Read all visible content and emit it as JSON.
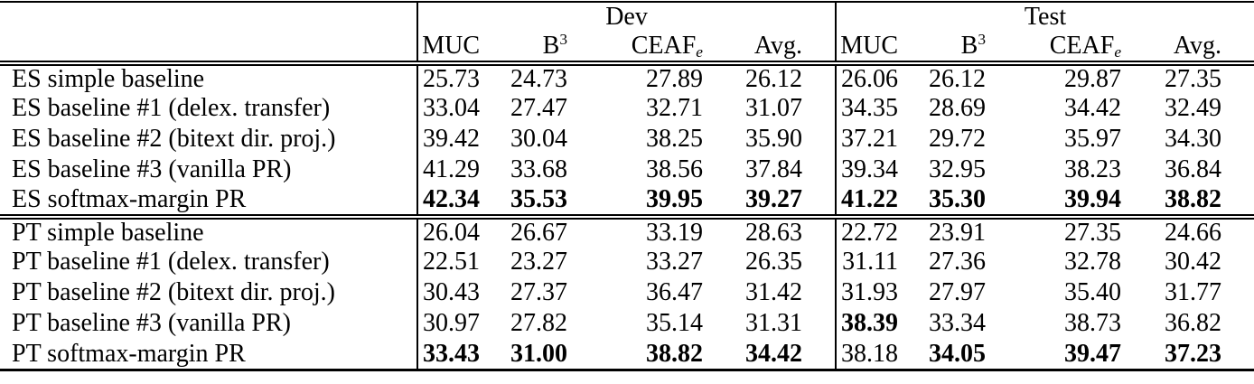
{
  "table": {
    "groups": [
      {
        "label": "Dev"
      },
      {
        "label": "Test"
      }
    ],
    "metrics": [
      {
        "text": "MUC"
      },
      {
        "text": "B",
        "sup": "3"
      },
      {
        "text": "CEAF",
        "sub": "e"
      },
      {
        "text": "Avg."
      }
    ],
    "metric_keys": [
      "muc",
      "b3",
      "ceafe",
      "avg"
    ],
    "sections": [
      {
        "name": "ES",
        "rows": [
          {
            "label": "ES simple baseline",
            "dev": [
              "25.73",
              "24.73",
              "27.89",
              "26.12"
            ],
            "test": [
              "26.06",
              "26.12",
              "29.87",
              "27.35"
            ],
            "bold_dev": [
              false,
              false,
              false,
              false
            ],
            "bold_test": [
              false,
              false,
              false,
              false
            ]
          },
          {
            "label": "ES baseline #1 (delex. transfer)",
            "dev": [
              "33.04",
              "27.47",
              "32.71",
              "31.07"
            ],
            "test": [
              "34.35",
              "28.69",
              "34.42",
              "32.49"
            ],
            "bold_dev": [
              false,
              false,
              false,
              false
            ],
            "bold_test": [
              false,
              false,
              false,
              false
            ]
          },
          {
            "label": "ES baseline #2 (bitext dir. proj.)",
            "dev": [
              "39.42",
              "30.04",
              "38.25",
              "35.90"
            ],
            "test": [
              "37.21",
              "29.72",
              "35.97",
              "34.30"
            ],
            "bold_dev": [
              false,
              false,
              false,
              false
            ],
            "bold_test": [
              false,
              false,
              false,
              false
            ]
          },
          {
            "label": "ES baseline #3 (vanilla PR)",
            "dev": [
              "41.29",
              "33.68",
              "38.56",
              "37.84"
            ],
            "test": [
              "39.34",
              "32.95",
              "38.23",
              "36.84"
            ],
            "bold_dev": [
              false,
              false,
              false,
              false
            ],
            "bold_test": [
              false,
              false,
              false,
              false
            ]
          },
          {
            "label": "ES softmax-margin PR",
            "dev": [
              "42.34",
              "35.53",
              "39.95",
              "39.27"
            ],
            "test": [
              "41.22",
              "35.30",
              "39.94",
              "38.82"
            ],
            "bold_dev": [
              true,
              true,
              true,
              true
            ],
            "bold_test": [
              true,
              true,
              true,
              true
            ]
          }
        ]
      },
      {
        "name": "PT",
        "rows": [
          {
            "label": "PT simple baseline",
            "dev": [
              "26.04",
              "26.67",
              "33.19",
              "28.63"
            ],
            "test": [
              "22.72",
              "23.91",
              "27.35",
              "24.66"
            ],
            "bold_dev": [
              false,
              false,
              false,
              false
            ],
            "bold_test": [
              false,
              false,
              false,
              false
            ]
          },
          {
            "label": "PT baseline #1 (delex. transfer)",
            "dev": [
              "22.51",
              "23.27",
              "33.27",
              "26.35"
            ],
            "test": [
              "31.11",
              "27.36",
              "32.78",
              "30.42"
            ],
            "bold_dev": [
              false,
              false,
              false,
              false
            ],
            "bold_test": [
              false,
              false,
              false,
              false
            ]
          },
          {
            "label": "PT baseline #2 (bitext dir. proj.)",
            "dev": [
              "30.43",
              "27.37",
              "36.47",
              "31.42"
            ],
            "test": [
              "31.93",
              "27.97",
              "35.40",
              "31.77"
            ],
            "bold_dev": [
              false,
              false,
              false,
              false
            ],
            "bold_test": [
              false,
              false,
              false,
              false
            ]
          },
          {
            "label": "PT baseline #3 (vanilla PR)",
            "dev": [
              "30.97",
              "27.82",
              "35.14",
              "31.31"
            ],
            "test": [
              "38.39",
              "33.34",
              "38.73",
              "36.82"
            ],
            "bold_dev": [
              false,
              false,
              false,
              false
            ],
            "bold_test": [
              true,
              false,
              false,
              false
            ]
          },
          {
            "label": "PT softmax-margin PR",
            "dev": [
              "33.43",
              "31.00",
              "38.82",
              "34.42"
            ],
            "test": [
              "38.18",
              "34.05",
              "39.47",
              "37.23"
            ],
            "bold_dev": [
              true,
              true,
              true,
              true
            ],
            "bold_test": [
              false,
              true,
              true,
              true
            ]
          }
        ]
      }
    ],
    "colors": {
      "text": "#000000",
      "background": "#ffffff",
      "rule": "#000000"
    }
  }
}
